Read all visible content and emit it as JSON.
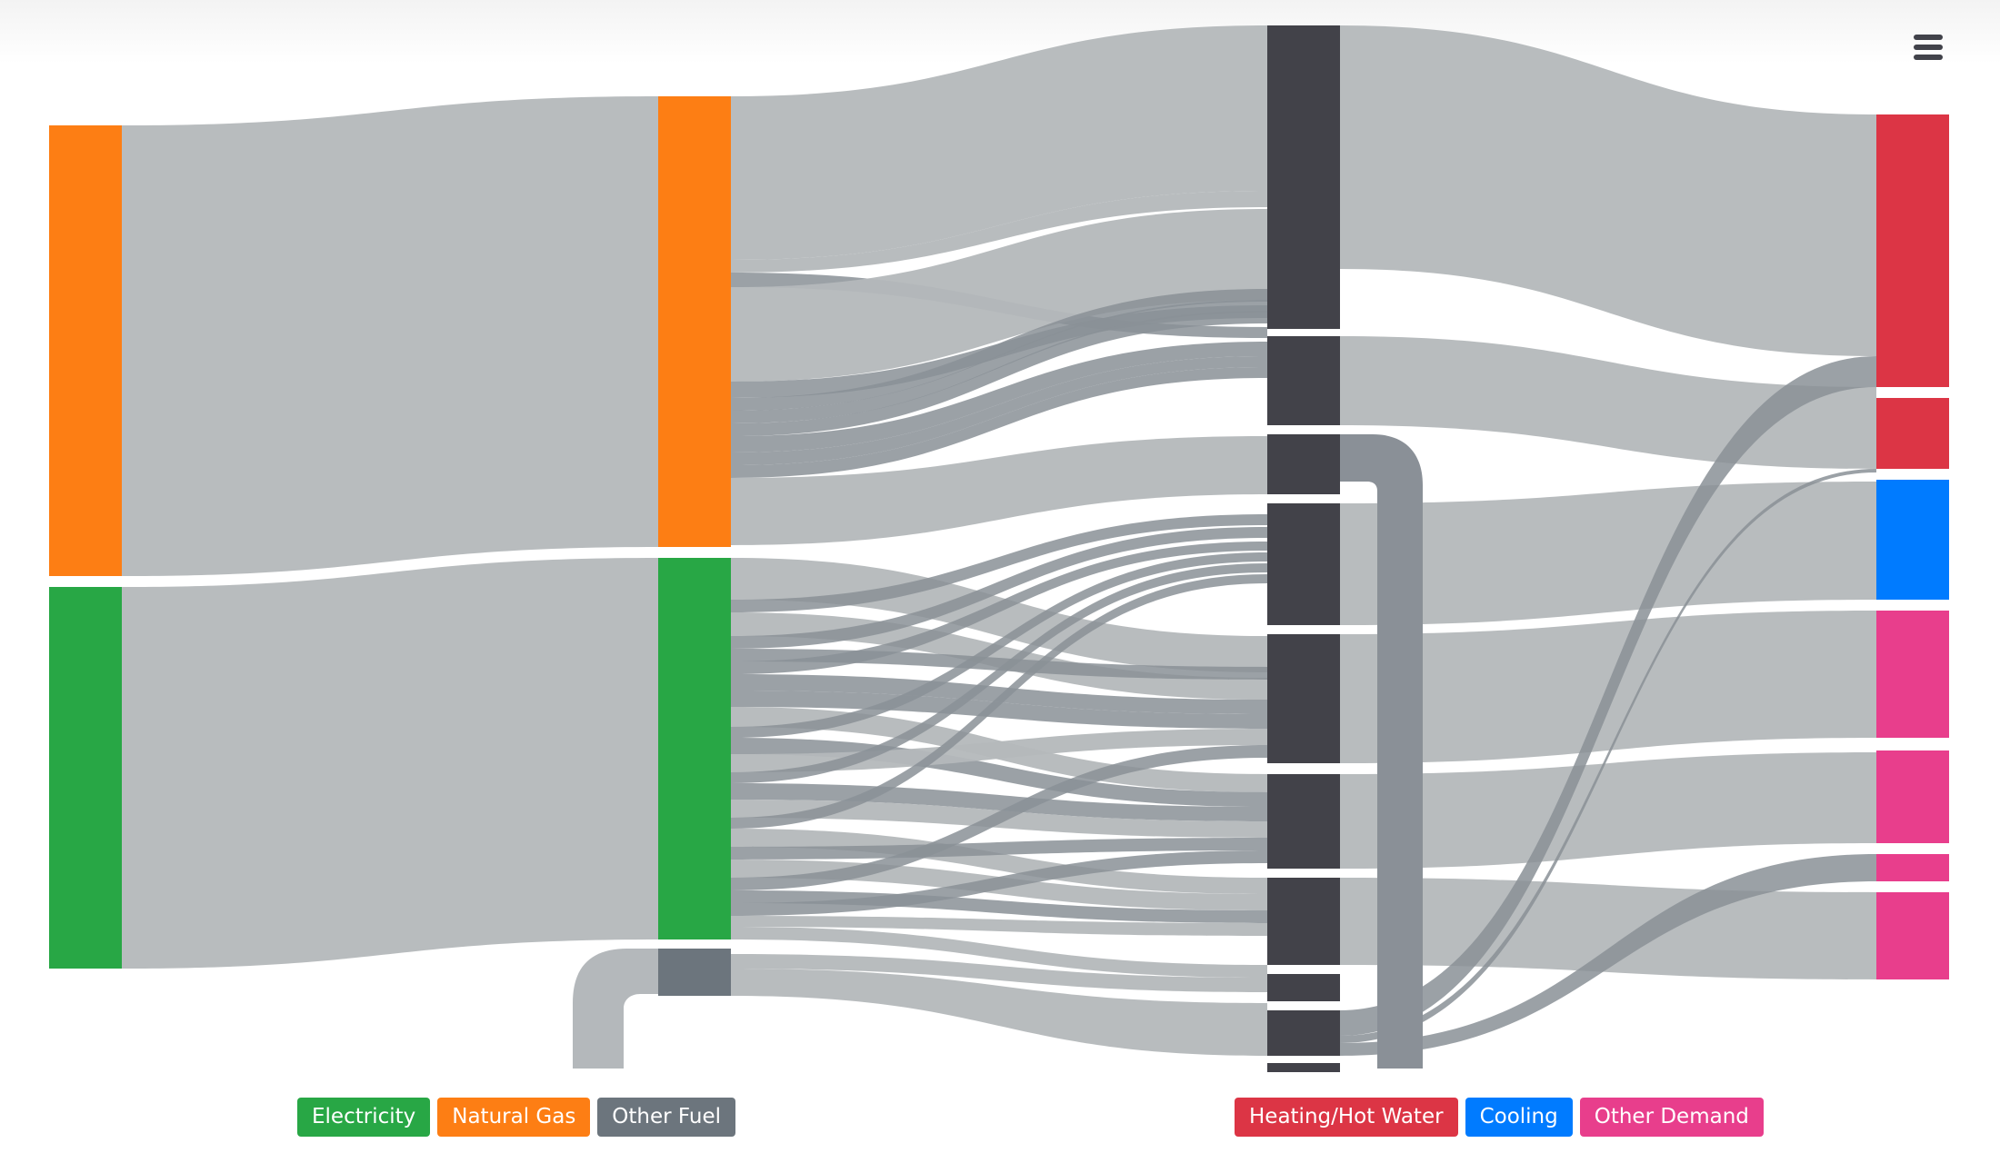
{
  "colors": {
    "electricity": "#28a745",
    "natural_gas": "#fd7e14",
    "other_fuel": "#6c757d",
    "heating": "#dc3545",
    "cooling": "#007bff",
    "other_demand": "#e83e8c",
    "end_use": "#424249",
    "link": "#b4b8bb",
    "link_dark": "#8a9097"
  },
  "menu": {
    "icon": "hamburger-menu-icon"
  },
  "legend": {
    "left": [
      {
        "label": "Electricity",
        "color": "#28a745"
      },
      {
        "label": "Natural Gas",
        "color": "#fd7e14"
      },
      {
        "label": "Other Fuel",
        "color": "#6c757d"
      }
    ],
    "right": [
      {
        "label": "Heating/Hot Water",
        "color": "#dc3545"
      },
      {
        "label": "Cooling",
        "color": "#007bff"
      },
      {
        "label": "Other Demand",
        "color": "#e83e8c"
      }
    ]
  }
}
